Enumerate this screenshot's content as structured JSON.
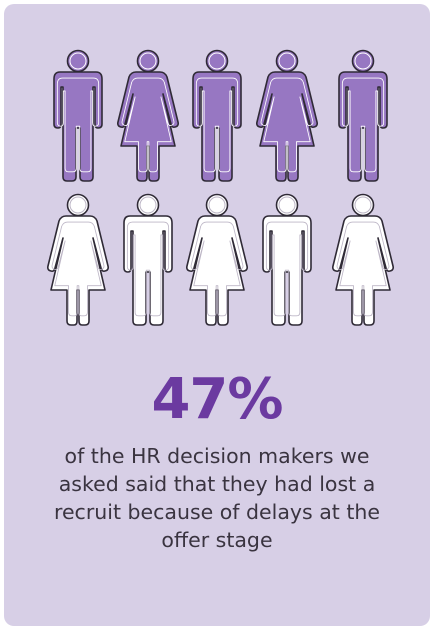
{
  "colors": {
    "card_background": "#d7cfe6",
    "filled_icon": "#9777c2",
    "outline_icon": "#ffffff",
    "icon_stroke": "#2f2a36",
    "accent_text": "#6b3aa0",
    "body_text": "#3a3440"
  },
  "infographic": {
    "ratio": {
      "highlighted": 5,
      "total": 10
    },
    "icons": [
      {
        "figure": "male",
        "highlighted": true
      },
      {
        "figure": "female",
        "highlighted": true
      },
      {
        "figure": "male",
        "highlighted": true
      },
      {
        "figure": "female",
        "highlighted": true
      },
      {
        "figure": "male",
        "highlighted": true
      },
      {
        "figure": "female",
        "highlighted": false
      },
      {
        "figure": "male",
        "highlighted": false
      },
      {
        "figure": "female",
        "highlighted": false
      },
      {
        "figure": "male",
        "highlighted": false
      },
      {
        "figure": "female",
        "highlighted": false
      }
    ]
  },
  "stat": {
    "value": "47%",
    "description": "of the HR decision makers we asked said that they had lost a recruit because of delays at the offer stage"
  }
}
